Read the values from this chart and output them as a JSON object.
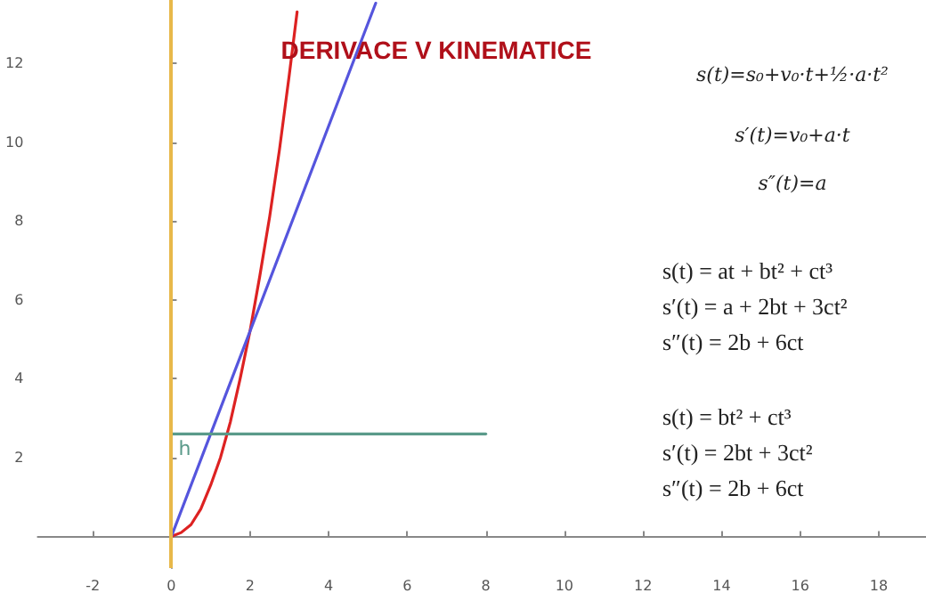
{
  "chart_data": {
    "type": "line",
    "title": "DERIVACE V KINEMATICE",
    "xlim": [
      -3.4,
      19.2
    ],
    "ylim": [
      -0.8,
      13.6
    ],
    "xticks": [
      -2,
      0,
      2,
      4,
      6,
      8,
      10,
      12,
      14,
      16,
      18
    ],
    "yticks": [
      2,
      4,
      6,
      8,
      10,
      12
    ],
    "grid": false,
    "legend": false,
    "marker": "none",
    "line_style": "solid",
    "series": [
      {
        "color": "#dd2222",
        "x": [
          0,
          0.25,
          0.5,
          0.75,
          1,
          1.25,
          1.5,
          1.75,
          2,
          2.25,
          2.5,
          2.75,
          3,
          3.2
        ],
        "values": [
          0,
          0.1,
          0.3,
          0.7,
          1.3,
          2.0,
          2.9,
          4.0,
          5.2,
          6.6,
          8.1,
          9.8,
          11.7,
          13.3
        ]
      },
      {
        "color": "#5555dd",
        "x": [
          0,
          5.2
        ],
        "values": [
          0,
          13.52
        ]
      },
      {
        "name": "h",
        "color": "#5a9a8a",
        "x": [
          0,
          8
        ],
        "values": [
          2.6,
          2.6
        ]
      }
    ],
    "ref_lines": [
      {
        "axis": "x",
        "value": 0,
        "color": "#e8b84a"
      }
    ],
    "annotations": [
      "s(t)=s₀+v₀·t+½·a·t²",
      "s′(t)=v₀+a·t",
      "s″(t)=a",
      "s(t) = at + bt² + ct³",
      "s′(t) = a + 2bt + 3ct²",
      "s″(t) = 2b + 6ct",
      "s(t) = bt² + ct³",
      "s′(t) = 2bt + 3ct²",
      "s″(t) = 2b + 6ct"
    ]
  }
}
